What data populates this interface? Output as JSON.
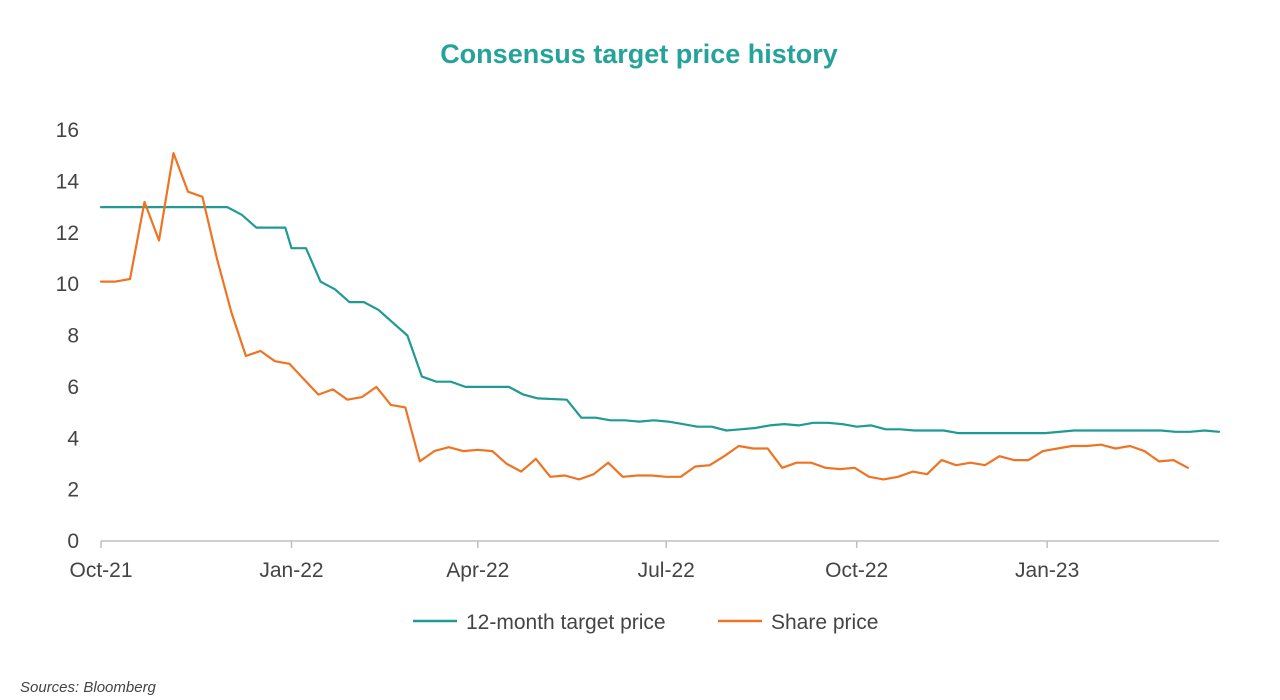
{
  "chart_data": {
    "type": "line",
    "title": "Consensus target price history",
    "source": "Sources: Bloomberg",
    "xlabel": "",
    "ylabel": "",
    "ylim": [
      0,
      16
    ],
    "yticks": [
      "0",
      "2",
      "4",
      "6",
      "8",
      "10",
      "12",
      "14",
      "16"
    ],
    "xlim": [
      "2021-10-01",
      "2023-03-25"
    ],
    "xticks": [
      {
        "label": "Oct-21",
        "date": "2021-10-01"
      },
      {
        "label": "Jan-22",
        "date": "2022-01-01"
      },
      {
        "label": "Apr-22",
        "date": "2022-04-01"
      },
      {
        "label": "Jul-22",
        "date": "2022-07-01"
      },
      {
        "label": "Oct-22",
        "date": "2022-10-01"
      },
      {
        "label": "Jan-23",
        "date": "2023-01-01"
      }
    ],
    "grid": false,
    "legend": "bottom",
    "series": [
      {
        "name": "12-month target price",
        "color": "#1f9a94",
        "points": [
          [
            "2021-10-01",
            13.0
          ],
          [
            "2021-10-15",
            13.0
          ],
          [
            "2021-11-01",
            13.0
          ],
          [
            "2021-11-15",
            13.0
          ],
          [
            "2021-12-01",
            13.0
          ],
          [
            "2021-12-08",
            12.7
          ],
          [
            "2021-12-15",
            12.2
          ],
          [
            "2021-12-29",
            12.2
          ],
          [
            "2022-01-01",
            11.4
          ],
          [
            "2022-01-08",
            11.4
          ],
          [
            "2022-01-15",
            10.1
          ],
          [
            "2022-01-22",
            9.8
          ],
          [
            "2022-01-29",
            9.3
          ],
          [
            "2022-02-05",
            9.3
          ],
          [
            "2022-02-12",
            9.0
          ],
          [
            "2022-02-19",
            8.5
          ],
          [
            "2022-02-26",
            8.0
          ],
          [
            "2022-03-05",
            6.4
          ],
          [
            "2022-03-12",
            6.2
          ],
          [
            "2022-03-19",
            6.2
          ],
          [
            "2022-03-26",
            6.0
          ],
          [
            "2022-04-02",
            6.0
          ],
          [
            "2022-04-16",
            6.0
          ],
          [
            "2022-04-23",
            5.7
          ],
          [
            "2022-04-30",
            5.55
          ],
          [
            "2022-05-14",
            5.5
          ],
          [
            "2022-05-21",
            4.8
          ],
          [
            "2022-05-28",
            4.8
          ],
          [
            "2022-06-04",
            4.7
          ],
          [
            "2022-06-11",
            4.7
          ],
          [
            "2022-06-18",
            4.65
          ],
          [
            "2022-06-25",
            4.7
          ],
          [
            "2022-07-02",
            4.65
          ],
          [
            "2022-07-09",
            4.55
          ],
          [
            "2022-07-16",
            4.45
          ],
          [
            "2022-07-23",
            4.45
          ],
          [
            "2022-07-30",
            4.3
          ],
          [
            "2022-08-06",
            4.35
          ],
          [
            "2022-08-13",
            4.4
          ],
          [
            "2022-08-20",
            4.5
          ],
          [
            "2022-08-27",
            4.55
          ],
          [
            "2022-09-03",
            4.5
          ],
          [
            "2022-09-10",
            4.6
          ],
          [
            "2022-09-17",
            4.6
          ],
          [
            "2022-09-24",
            4.55
          ],
          [
            "2022-10-01",
            4.45
          ],
          [
            "2022-10-08",
            4.5
          ],
          [
            "2022-10-15",
            4.35
          ],
          [
            "2022-10-22",
            4.35
          ],
          [
            "2022-10-29",
            4.3
          ],
          [
            "2022-11-12",
            4.3
          ],
          [
            "2022-11-19",
            4.2
          ],
          [
            "2022-12-03",
            4.2
          ],
          [
            "2022-12-31",
            4.2
          ],
          [
            "2023-01-14",
            4.3
          ],
          [
            "2023-02-25",
            4.3
          ],
          [
            "2023-03-04",
            4.25
          ],
          [
            "2023-03-11",
            4.25
          ],
          [
            "2023-03-18",
            4.3
          ],
          [
            "2023-03-25",
            4.25
          ]
        ]
      },
      {
        "name": "Share price",
        "color": "#ee7423",
        "points": [
          [
            "2021-10-01",
            10.1
          ],
          [
            "2021-10-08",
            10.1
          ],
          [
            "2021-10-15",
            10.2
          ],
          [
            "2021-10-22",
            13.2
          ],
          [
            "2021-10-29",
            11.7
          ],
          [
            "2021-11-05",
            15.1
          ],
          [
            "2021-11-12",
            13.6
          ],
          [
            "2021-11-19",
            13.4
          ],
          [
            "2021-11-26",
            11.0
          ],
          [
            "2021-12-03",
            8.9
          ],
          [
            "2021-12-10",
            7.2
          ],
          [
            "2021-12-17",
            7.4
          ],
          [
            "2021-12-24",
            7.0
          ],
          [
            "2021-12-31",
            6.9
          ],
          [
            "2022-01-07",
            6.3
          ],
          [
            "2022-01-14",
            5.7
          ],
          [
            "2022-01-21",
            5.9
          ],
          [
            "2022-01-28",
            5.5
          ],
          [
            "2022-02-04",
            5.6
          ],
          [
            "2022-02-11",
            6.0
          ],
          [
            "2022-02-18",
            5.3
          ],
          [
            "2022-02-25",
            5.2
          ],
          [
            "2022-03-04",
            3.1
          ],
          [
            "2022-03-11",
            3.5
          ],
          [
            "2022-03-18",
            3.65
          ],
          [
            "2022-03-25",
            3.5
          ],
          [
            "2022-04-01",
            3.55
          ],
          [
            "2022-04-08",
            3.5
          ],
          [
            "2022-04-15",
            3.0
          ],
          [
            "2022-04-22",
            2.7
          ],
          [
            "2022-04-29",
            3.2
          ],
          [
            "2022-05-06",
            2.5
          ],
          [
            "2022-05-13",
            2.55
          ],
          [
            "2022-05-20",
            2.4
          ],
          [
            "2022-05-27",
            2.6
          ],
          [
            "2022-06-03",
            3.05
          ],
          [
            "2022-06-10",
            2.5
          ],
          [
            "2022-06-17",
            2.55
          ],
          [
            "2022-06-24",
            2.55
          ],
          [
            "2022-07-01",
            2.5
          ],
          [
            "2022-07-08",
            2.5
          ],
          [
            "2022-07-15",
            2.9
          ],
          [
            "2022-07-22",
            2.95
          ],
          [
            "2022-07-29",
            3.3
          ],
          [
            "2022-08-05",
            3.7
          ],
          [
            "2022-08-12",
            3.6
          ],
          [
            "2022-08-19",
            3.6
          ],
          [
            "2022-08-26",
            2.85
          ],
          [
            "2022-09-02",
            3.05
          ],
          [
            "2022-09-09",
            3.05
          ],
          [
            "2022-09-16",
            2.85
          ],
          [
            "2022-09-23",
            2.8
          ],
          [
            "2022-09-30",
            2.85
          ],
          [
            "2022-10-07",
            2.5
          ],
          [
            "2022-10-14",
            2.4
          ],
          [
            "2022-10-21",
            2.5
          ],
          [
            "2022-10-28",
            2.7
          ],
          [
            "2022-11-04",
            2.6
          ],
          [
            "2022-11-11",
            3.15
          ],
          [
            "2022-11-18",
            2.95
          ],
          [
            "2022-11-25",
            3.05
          ],
          [
            "2022-12-02",
            2.95
          ],
          [
            "2022-12-09",
            3.3
          ],
          [
            "2022-12-16",
            3.15
          ],
          [
            "2022-12-23",
            3.15
          ],
          [
            "2022-12-30",
            3.5
          ],
          [
            "2023-01-06",
            3.6
          ],
          [
            "2023-01-13",
            3.7
          ],
          [
            "2023-01-20",
            3.7
          ],
          [
            "2023-01-27",
            3.75
          ],
          [
            "2023-02-03",
            3.6
          ],
          [
            "2023-02-10",
            3.7
          ],
          [
            "2023-02-17",
            3.5
          ],
          [
            "2023-02-24",
            3.1
          ],
          [
            "2023-03-03",
            3.15
          ],
          [
            "2023-03-10",
            2.85
          ]
        ]
      }
    ]
  }
}
